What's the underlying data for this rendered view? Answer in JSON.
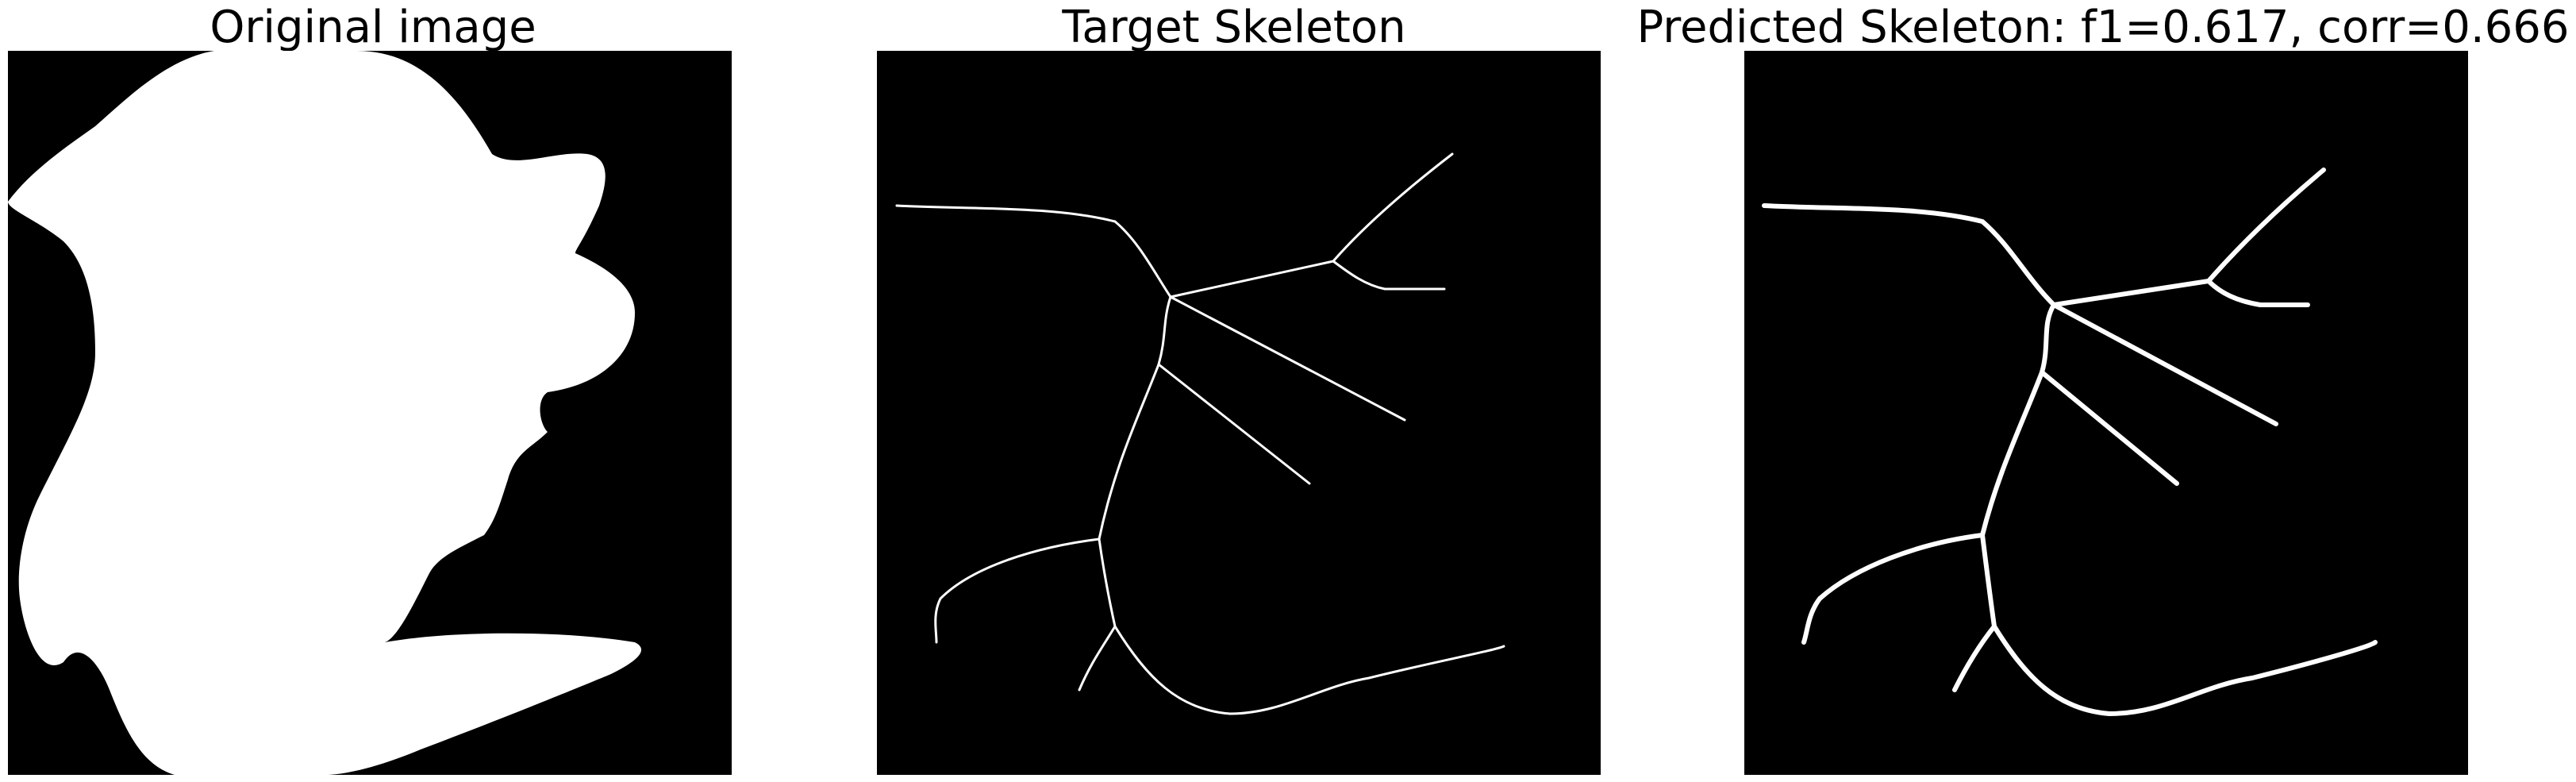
{
  "colors": {
    "background": "#ffffff",
    "image_background": "#000000",
    "foreground": "#ffffff"
  },
  "panels": [
    {
      "title": "Original image"
    },
    {
      "title": "Target Skeleton"
    },
    {
      "title": "Predicted Skeleton: f1=0.617, corr=0.666"
    }
  ]
}
